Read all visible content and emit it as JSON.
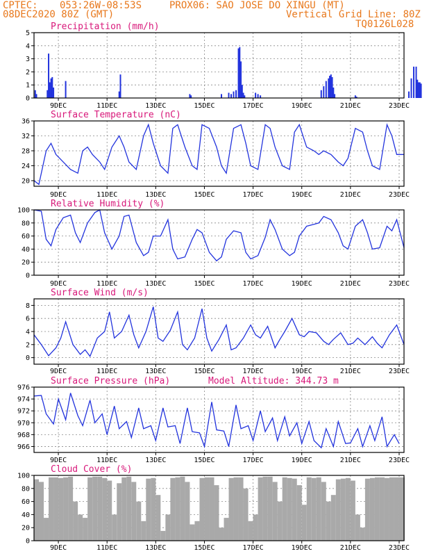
{
  "header": {
    "line1_left": "CPTEC:",
    "line1_coords": "053:26W-08:53S",
    "line1_station": "PROX06: SAO JOSE DO XINGU (MT)",
    "line2_left": "08DEC2020 80Z (GMT)",
    "line2_right": "Vertical Grid Line: 80Z",
    "line3_right": "TQ0126L028"
  },
  "x_tick_labels": [
    "9DEC",
    "11DEC",
    "13DEC",
    "15DEC",
    "17DEC",
    "19DEC",
    "21DEC",
    "23DEC"
  ],
  "colors": {
    "line": "#2233dd",
    "bar": "#2233dd",
    "cloud": "#a9a9a9",
    "title": "#d8187a",
    "header": "#e8781c"
  },
  "chart_data": [
    {
      "type": "bar",
      "title": "Precipitation (mm/h)",
      "ylim": [
        0,
        5
      ],
      "yticks": [
        0,
        1,
        2,
        3,
        4,
        5
      ],
      "x_unit": "days since 08DEC2020 00Z",
      "series": [
        {
          "name": "Precipitation",
          "x": [
            0.05,
            0.1,
            0.55,
            0.6,
            0.65,
            0.7,
            0.75,
            0.8,
            1.3,
            3.5,
            3.55,
            6.4,
            6.45,
            7.7,
            8.0,
            8.1,
            8.2,
            8.3,
            8.4,
            8.45,
            8.5,
            8.55,
            8.6,
            8.65,
            9.1,
            9.2,
            9.3,
            11.8,
            11.9,
            12.0,
            12.1,
            12.15,
            12.2,
            12.25,
            12.3,
            12.35,
            13.2,
            13.25,
            15.4,
            15.5,
            15.6,
            15.7,
            15.75,
            15.8,
            15.85,
            15.9,
            17.4,
            17.5,
            17.55,
            17.6,
            17.65,
            17.7,
            17.75,
            17.8
          ],
          "values": [
            0.6,
            0.3,
            0.6,
            3.4,
            1.2,
            1.5,
            1.6,
            0.8,
            1.3,
            0.5,
            1.8,
            0.3,
            0.2,
            0.3,
            0.4,
            0.3,
            0.5,
            0.6,
            3.8,
            3.9,
            2.8,
            1.0,
            0.4,
            0.2,
            0.4,
            0.3,
            0.2,
            0.6,
            0.9,
            1.3,
            1.5,
            1.7,
            1.8,
            1.6,
            0.8,
            0.3,
            0.2,
            0.1,
            0.5,
            1.5,
            2.4,
            2.4,
            1.4,
            1.2,
            1.2,
            1.1,
            0.4,
            0.2,
            0.3,
            0.6,
            1.0,
            1.2,
            0.8,
            0.3
          ]
        }
      ]
    },
    {
      "type": "line",
      "title": "Surface Temperature (nC)",
      "ylim": [
        18.5,
        36
      ],
      "yticks": [
        20,
        24,
        28,
        32,
        36
      ],
      "x_unit": "days since 08DEC2020 00Z",
      "series": [
        {
          "name": "Temperature",
          "x": [
            0,
            0.2,
            0.5,
            0.7,
            0.9,
            1.2,
            1.5,
            1.8,
            2.0,
            2.2,
            2.4,
            2.7,
            2.9,
            3.2,
            3.5,
            3.7,
            3.9,
            4.2,
            4.5,
            4.7,
            4.9,
            5.2,
            5.5,
            5.7,
            5.9,
            6.2,
            6.5,
            6.7,
            6.9,
            7.2,
            7.5,
            7.7,
            7.9,
            8.2,
            8.5,
            8.7,
            8.9,
            9.2,
            9.5,
            9.7,
            9.9,
            10.2,
            10.5,
            10.7,
            10.9,
            11.2,
            11.5,
            11.7,
            11.9,
            12.2,
            12.5,
            12.7,
            12.9,
            13.2,
            13.5,
            13.7,
            13.9,
            14.2,
            14.5,
            14.7,
            14.9,
            15.2
          ],
          "values": [
            20,
            19,
            28,
            30,
            27,
            25,
            23,
            22,
            28,
            29,
            27,
            25,
            23,
            29,
            32,
            29,
            25,
            23,
            32,
            35,
            30,
            24,
            22,
            34,
            35,
            29,
            24,
            23,
            35,
            34,
            29,
            24,
            22,
            34,
            35,
            30,
            24,
            23,
            35,
            34,
            29,
            24,
            23,
            33,
            35,
            29,
            28,
            27,
            28,
            27,
            25,
            24,
            26,
            34,
            33,
            28,
            24,
            23,
            35,
            32,
            27,
            27
          ]
        }
      ]
    },
    {
      "type": "line",
      "title": "Relative Humidity (%)",
      "ylim": [
        0,
        100
      ],
      "yticks": [
        0,
        20,
        40,
        60,
        80,
        100
      ],
      "x_unit": "days since 08DEC2020 00Z",
      "series": [
        {
          "name": "Humidity",
          "x": [
            0,
            0.3,
            0.5,
            0.7,
            0.9,
            1.2,
            1.5,
            1.7,
            1.9,
            2.2,
            2.5,
            2.7,
            2.9,
            3.2,
            3.5,
            3.7,
            3.9,
            4.2,
            4.5,
            4.7,
            4.9,
            5.2,
            5.5,
            5.7,
            5.9,
            6.2,
            6.5,
            6.7,
            6.9,
            7.2,
            7.5,
            7.7,
            7.9,
            8.2,
            8.5,
            8.7,
            8.9,
            9.2,
            9.5,
            9.7,
            9.9,
            10.2,
            10.5,
            10.7,
            10.9,
            11.2,
            11.5,
            11.7,
            11.9,
            12.2,
            12.5,
            12.7,
            12.9,
            13.2,
            13.5,
            13.7,
            13.9,
            14.2,
            14.5,
            14.7,
            14.9,
            15.2
          ],
          "values": [
            100,
            98,
            55,
            45,
            70,
            88,
            92,
            65,
            50,
            80,
            96,
            100,
            65,
            40,
            60,
            90,
            92,
            50,
            30,
            35,
            60,
            60,
            85,
            40,
            25,
            28,
            55,
            70,
            65,
            35,
            22,
            28,
            55,
            68,
            65,
            35,
            25,
            30,
            58,
            85,
            70,
            40,
            30,
            35,
            60,
            75,
            78,
            80,
            90,
            85,
            65,
            45,
            40,
            75,
            85,
            65,
            40,
            42,
            75,
            68,
            85,
            42
          ]
        }
      ]
    },
    {
      "type": "line",
      "title": "Surface Wind (m/s)",
      "ylim": [
        -1,
        9
      ],
      "yticks": [
        0,
        2,
        4,
        6,
        8
      ],
      "x_unit": "days since 08DEC2020 00Z",
      "series": [
        {
          "name": "Wind speed",
          "x": [
            0,
            0.3,
            0.6,
            0.9,
            1.1,
            1.3,
            1.6,
            1.9,
            2.1,
            2.3,
            2.6,
            2.9,
            3.1,
            3.3,
            3.6,
            3.9,
            4.1,
            4.3,
            4.6,
            4.9,
            5.1,
            5.3,
            5.6,
            5.9,
            6.1,
            6.3,
            6.6,
            6.9,
            7.1,
            7.3,
            7.6,
            7.9,
            8.1,
            8.3,
            8.6,
            8.9,
            9.1,
            9.3,
            9.6,
            9.9,
            10.1,
            10.3,
            10.6,
            10.9,
            11.1,
            11.3,
            11.6,
            11.9,
            12.1,
            12.3,
            12.6,
            12.9,
            13.1,
            13.3,
            13.6,
            13.9,
            14.1,
            14.3,
            14.6,
            14.9,
            15.2
          ],
          "values": [
            3.5,
            2.0,
            0.3,
            1.5,
            3.0,
            5.5,
            2.0,
            0.5,
            1.2,
            0.2,
            3.0,
            4.0,
            7.0,
            3.0,
            4.0,
            6.5,
            3.5,
            1.5,
            4.0,
            7.8,
            3.0,
            2.5,
            4.2,
            7.0,
            2.0,
            1.2,
            3.0,
            7.5,
            3.0,
            1.0,
            2.8,
            5.0,
            1.2,
            1.5,
            3.0,
            5.0,
            3.5,
            3.0,
            4.8,
            1.5,
            2.8,
            4.0,
            6.0,
            3.5,
            3.2,
            4.0,
            3.8,
            2.5,
            2.0,
            2.8,
            3.8,
            2.0,
            2.2,
            3.0,
            2.0,
            3.2,
            2.2,
            1.5,
            3.5,
            5.0,
            2.0
          ]
        }
      ]
    },
    {
      "type": "line",
      "title": "Surface Pressure (hPa)",
      "subtitle": "Model Altitude: 344.73 m",
      "ylim": [
        965,
        976
      ],
      "yticks": [
        966,
        968,
        970,
        972,
        974,
        976
      ],
      "x_unit": "days since 08DEC2020 00Z",
      "series": [
        {
          "name": "Pressure",
          "x": [
            0,
            0.3,
            0.5,
            0.8,
            1.0,
            1.3,
            1.5,
            1.8,
            2.0,
            2.3,
            2.5,
            2.8,
            3.0,
            3.3,
            3.5,
            3.8,
            4.0,
            4.3,
            4.5,
            4.8,
            5.0,
            5.3,
            5.5,
            5.8,
            6.0,
            6.3,
            6.5,
            6.8,
            7.0,
            7.3,
            7.5,
            7.8,
            8.0,
            8.3,
            8.5,
            8.8,
            9.0,
            9.3,
            9.5,
            9.8,
            10.0,
            10.3,
            10.5,
            10.8,
            11.0,
            11.3,
            11.5,
            11.8,
            12.0,
            12.3,
            12.5,
            12.8,
            13.0,
            13.3,
            13.5,
            13.8,
            14.0,
            14.3,
            14.5,
            14.8,
            15.0
          ],
          "values": [
            974.5,
            974.6,
            971.5,
            969.8,
            974.0,
            970.5,
            975.0,
            971.2,
            969.5,
            973.8,
            970.0,
            971.5,
            968.0,
            972.8,
            969.0,
            970.2,
            967.5,
            972.5,
            969.0,
            969.5,
            967.0,
            972.5,
            969.3,
            969.5,
            966.5,
            972.5,
            968.5,
            968.3,
            966.0,
            973.5,
            968.8,
            968.6,
            966.0,
            973.0,
            969.0,
            969.5,
            967.0,
            972.0,
            968.5,
            970.8,
            967.0,
            971.0,
            967.8,
            970.0,
            966.5,
            970.2,
            967.0,
            965.8,
            969.0,
            966.0,
            970.2,
            966.5,
            966.6,
            969.0,
            966.0,
            969.5,
            967.0,
            971.0,
            966.0,
            968.0,
            966.5
          ]
        }
      ]
    },
    {
      "type": "area",
      "title": "Cloud Cover (%)",
      "ylim": [
        0,
        100
      ],
      "yticks": [
        0,
        20,
        40,
        60,
        80,
        100
      ],
      "x_unit": "days since 08DEC2020 00Z",
      "series": [
        {
          "name": "Cloud cover",
          "x": [
            0,
            0.2,
            0.4,
            0.6,
            0.8,
            1.0,
            1.2,
            1.4,
            1.6,
            1.8,
            2.0,
            2.2,
            2.4,
            2.6,
            2.8,
            3.0,
            3.2,
            3.4,
            3.6,
            3.8,
            4.0,
            4.2,
            4.4,
            4.6,
            4.8,
            5.0,
            5.2,
            5.4,
            5.6,
            5.8,
            6.0,
            6.2,
            6.4,
            6.6,
            6.8,
            7.0,
            7.2,
            7.4,
            7.6,
            7.8,
            8.0,
            8.2,
            8.4,
            8.6,
            8.8,
            9.0,
            9.2,
            9.4,
            9.6,
            9.8,
            10.0,
            10.2,
            10.4,
            10.6,
            10.8,
            11.0,
            11.2,
            11.4,
            11.6,
            11.8,
            12.0,
            12.2,
            12.4,
            12.6,
            12.8,
            13.0,
            13.2,
            13.4,
            13.6,
            13.8,
            14.0,
            14.2,
            14.4,
            14.6,
            14.8,
            15.0,
            15.2
          ],
          "values": [
            94,
            90,
            35,
            97,
            97,
            96,
            97,
            98,
            60,
            40,
            35,
            97,
            98,
            98,
            96,
            92,
            40,
            88,
            97,
            98,
            90,
            60,
            30,
            95,
            96,
            70,
            15,
            40,
            96,
            97,
            98,
            90,
            25,
            30,
            96,
            97,
            97,
            85,
            20,
            35,
            96,
            97,
            97,
            80,
            30,
            40,
            97,
            98,
            98,
            90,
            60,
            97,
            96,
            95,
            85,
            55,
            97,
            96,
            97,
            90,
            60,
            70,
            94,
            95,
            96,
            92,
            40,
            20,
            95,
            96,
            97,
            97,
            96,
            97,
            97,
            97,
            97
          ]
        }
      ]
    }
  ]
}
